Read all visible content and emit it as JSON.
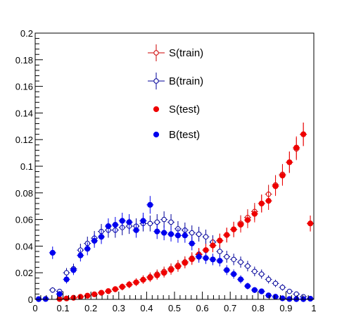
{
  "chart_data": {
    "type": "scatter",
    "title": "",
    "xlabel": "",
    "ylabel": "",
    "xlim": [
      0,
      1
    ],
    "ylim": [
      0,
      0.2
    ],
    "x_ticks": [
      "0",
      "0.1",
      "0.2",
      "0.3",
      "0.4",
      "0.5",
      "0.6",
      "0.7",
      "0.8",
      "0.9",
      "1"
    ],
    "y_ticks": [
      "0",
      "0.02",
      "0.04",
      "0.06",
      "0.08",
      "0.1",
      "0.12",
      "0.14",
      "0.16",
      "0.18",
      "0.2"
    ],
    "grid": false,
    "legend_position": "top-center",
    "bin_width": 0.025,
    "series": [
      {
        "name": "S(train)",
        "style": "open-circle",
        "color": "#cc0000",
        "x": [
          0.0875,
          0.1125,
          0.1375,
          0.1625,
          0.1875,
          0.2125,
          0.2375,
          0.2625,
          0.2875,
          0.3125,
          0.3375,
          0.3625,
          0.3875,
          0.4125,
          0.4375,
          0.4625,
          0.4875,
          0.5125,
          0.5375,
          0.5625,
          0.5875,
          0.6125,
          0.6375,
          0.6625,
          0.6875,
          0.7125,
          0.7375,
          0.7625,
          0.7875,
          0.8125,
          0.8375,
          0.8625,
          0.8875,
          0.9125,
          0.9375,
          0.9625,
          0.9875
        ],
        "y": [
          0.0003,
          0.0007,
          0.0012,
          0.0018,
          0.0026,
          0.0037,
          0.0048,
          0.006,
          0.0075,
          0.0092,
          0.011,
          0.013,
          0.015,
          0.017,
          0.019,
          0.021,
          0.0232,
          0.0256,
          0.0282,
          0.031,
          0.034,
          0.037,
          0.0404,
          0.044,
          0.0482,
          0.0524,
          0.0572,
          0.0615,
          0.066,
          0.072,
          0.079,
          0.086,
          0.094,
          0.103,
          0.113,
          0.124,
          0.057
        ]
      },
      {
        "name": "B(train)",
        "style": "open-circle",
        "color": "#000099",
        "x": [
          0.0125,
          0.0375,
          0.0625,
          0.0875,
          0.1125,
          0.1375,
          0.1625,
          0.1875,
          0.2125,
          0.2375,
          0.2625,
          0.2875,
          0.3125,
          0.3375,
          0.3625,
          0.3875,
          0.4125,
          0.4375,
          0.4625,
          0.4875,
          0.5125,
          0.5375,
          0.5625,
          0.5875,
          0.6125,
          0.6375,
          0.6625,
          0.6875,
          0.7125,
          0.7375,
          0.7625,
          0.7875,
          0.8125,
          0.8375,
          0.8625,
          0.8875,
          0.9125,
          0.9375,
          0.9625,
          0.9875
        ],
        "y": [
          0.0002,
          0.0003,
          0.007,
          0.006,
          0.02,
          0.023,
          0.037,
          0.042,
          0.046,
          0.051,
          0.052,
          0.052,
          0.054,
          0.055,
          0.055,
          0.057,
          0.057,
          0.058,
          0.06,
          0.058,
          0.053,
          0.052,
          0.05,
          0.049,
          0.047,
          0.043,
          0.036,
          0.032,
          0.03,
          0.028,
          0.025,
          0.021,
          0.019,
          0.015,
          0.012,
          0.009,
          0.006,
          0.004,
          0.002,
          0.0006
        ]
      },
      {
        "name": "S(test)",
        "style": "filled-circle",
        "color": "#ee0000",
        "x": [
          0.0875,
          0.1125,
          0.1375,
          0.1625,
          0.1875,
          0.2125,
          0.2375,
          0.2625,
          0.2875,
          0.3125,
          0.3375,
          0.3625,
          0.3875,
          0.4125,
          0.4375,
          0.4625,
          0.4875,
          0.5125,
          0.5375,
          0.5625,
          0.5875,
          0.6125,
          0.6375,
          0.6625,
          0.6875,
          0.7125,
          0.7375,
          0.7625,
          0.7875,
          0.8125,
          0.8375,
          0.8625,
          0.8875,
          0.9125,
          0.9375,
          0.9625,
          0.9875
        ],
        "y": [
          0.0003,
          0.0007,
          0.0012,
          0.0019,
          0.0028,
          0.0038,
          0.005,
          0.0062,
          0.0077,
          0.0095,
          0.0112,
          0.0128,
          0.0147,
          0.0163,
          0.0181,
          0.0199,
          0.0222,
          0.0246,
          0.0274,
          0.0302,
          0.0335,
          0.037,
          0.0405,
          0.0442,
          0.0484,
          0.0526,
          0.0561,
          0.0596,
          0.0642,
          0.072,
          0.074,
          0.085,
          0.093,
          0.103,
          0.114,
          0.124,
          0.057
        ]
      },
      {
        "name": "B(test)",
        "style": "filled-circle",
        "color": "#0000ee",
        "x": [
          0.0125,
          0.0375,
          0.0625,
          0.0875,
          0.1125,
          0.1375,
          0.1625,
          0.1875,
          0.2125,
          0.2375,
          0.2625,
          0.2875,
          0.3125,
          0.3375,
          0.3625,
          0.3875,
          0.4125,
          0.4375,
          0.4625,
          0.4875,
          0.5125,
          0.5375,
          0.5625,
          0.5875,
          0.6125,
          0.6375,
          0.6625,
          0.6875,
          0.7125,
          0.7375,
          0.7625,
          0.7875,
          0.8125,
          0.8375,
          0.8625,
          0.8875,
          0.9125,
          0.9375,
          0.9625,
          0.9875
        ],
        "y": [
          0.0002,
          0.0003,
          0.035,
          0.004,
          0.015,
          0.022,
          0.033,
          0.038,
          0.044,
          0.047,
          0.055,
          0.056,
          0.059,
          0.058,
          0.052,
          0.059,
          0.071,
          0.051,
          0.05,
          0.049,
          0.048,
          0.048,
          0.042,
          0.032,
          0.031,
          0.03,
          0.029,
          0.022,
          0.019,
          0.015,
          0.01,
          0.007,
          0.006,
          0.003,
          0.002,
          0.0008,
          0.0003,
          0.0002,
          0.0002,
          0.0005
        ]
      }
    ]
  }
}
